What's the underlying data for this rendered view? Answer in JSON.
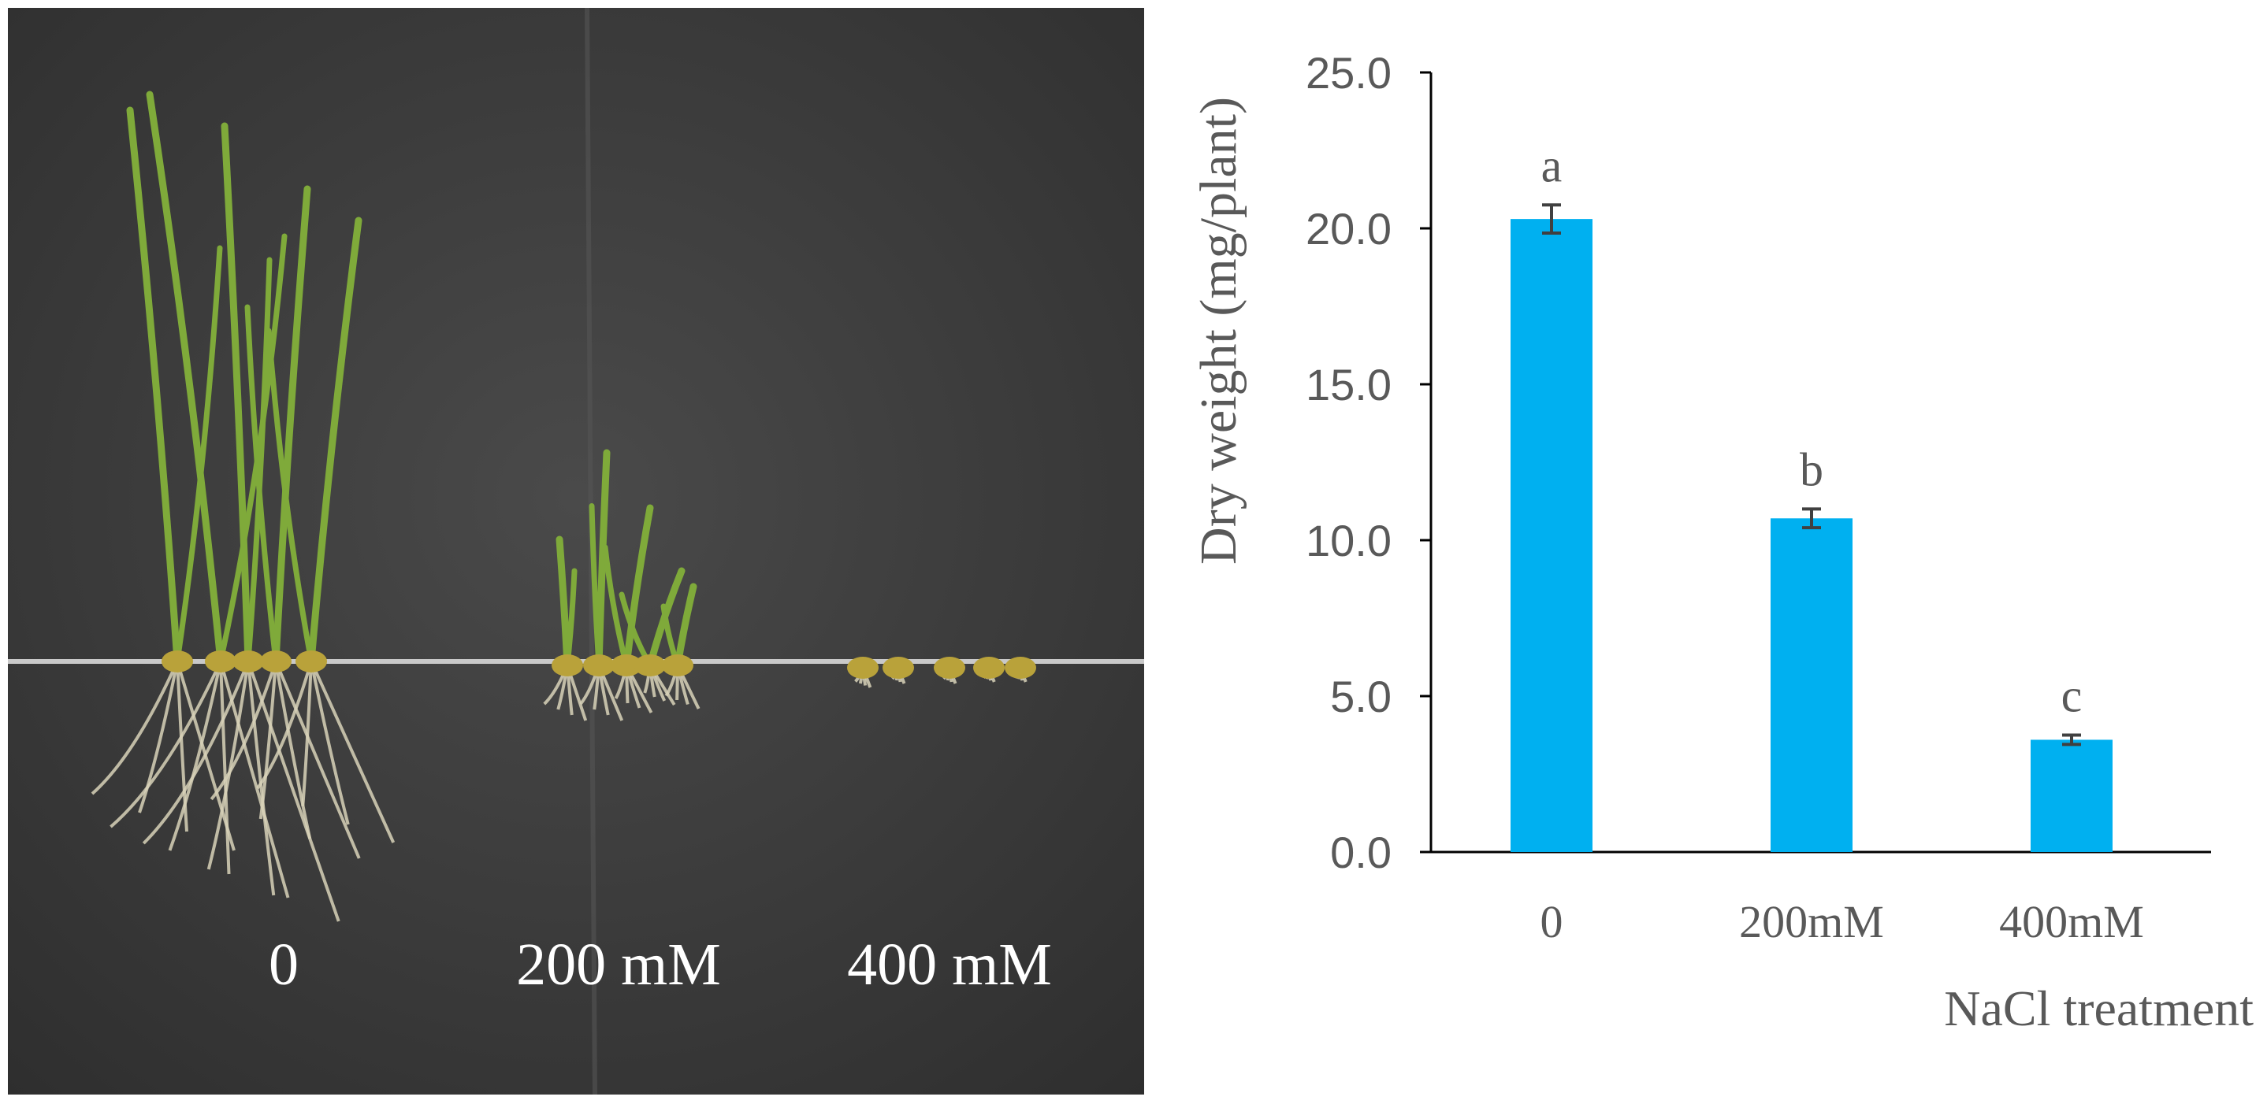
{
  "photo": {
    "labels": [
      "0",
      "200 mM",
      "400 mM"
    ]
  },
  "chart_data": {
    "type": "bar",
    "categories": [
      "0",
      "200mM",
      "400mM"
    ],
    "values": [
      20.3,
      10.7,
      3.6
    ],
    "errors": [
      0.45,
      0.3,
      0.15
    ],
    "significance_letters": [
      "a",
      "b",
      "c"
    ],
    "ylabel": "Dry weight (mg/plant)",
    "xlabel": "NaCl treatment",
    "ylim": [
      0,
      25
    ],
    "yticks": [
      "0.0",
      "5.0",
      "10.0",
      "15.0",
      "20.0",
      "25.0"
    ],
    "bar_color": "#00b0f0",
    "grid": false,
    "legend": "none"
  },
  "colors": {
    "background_cloth": "#3a3a3a",
    "leaf": "#7faa3a",
    "root": "#d8d2b8",
    "seed": "#b9a23a",
    "axis": "#000000",
    "text": "#595959"
  }
}
